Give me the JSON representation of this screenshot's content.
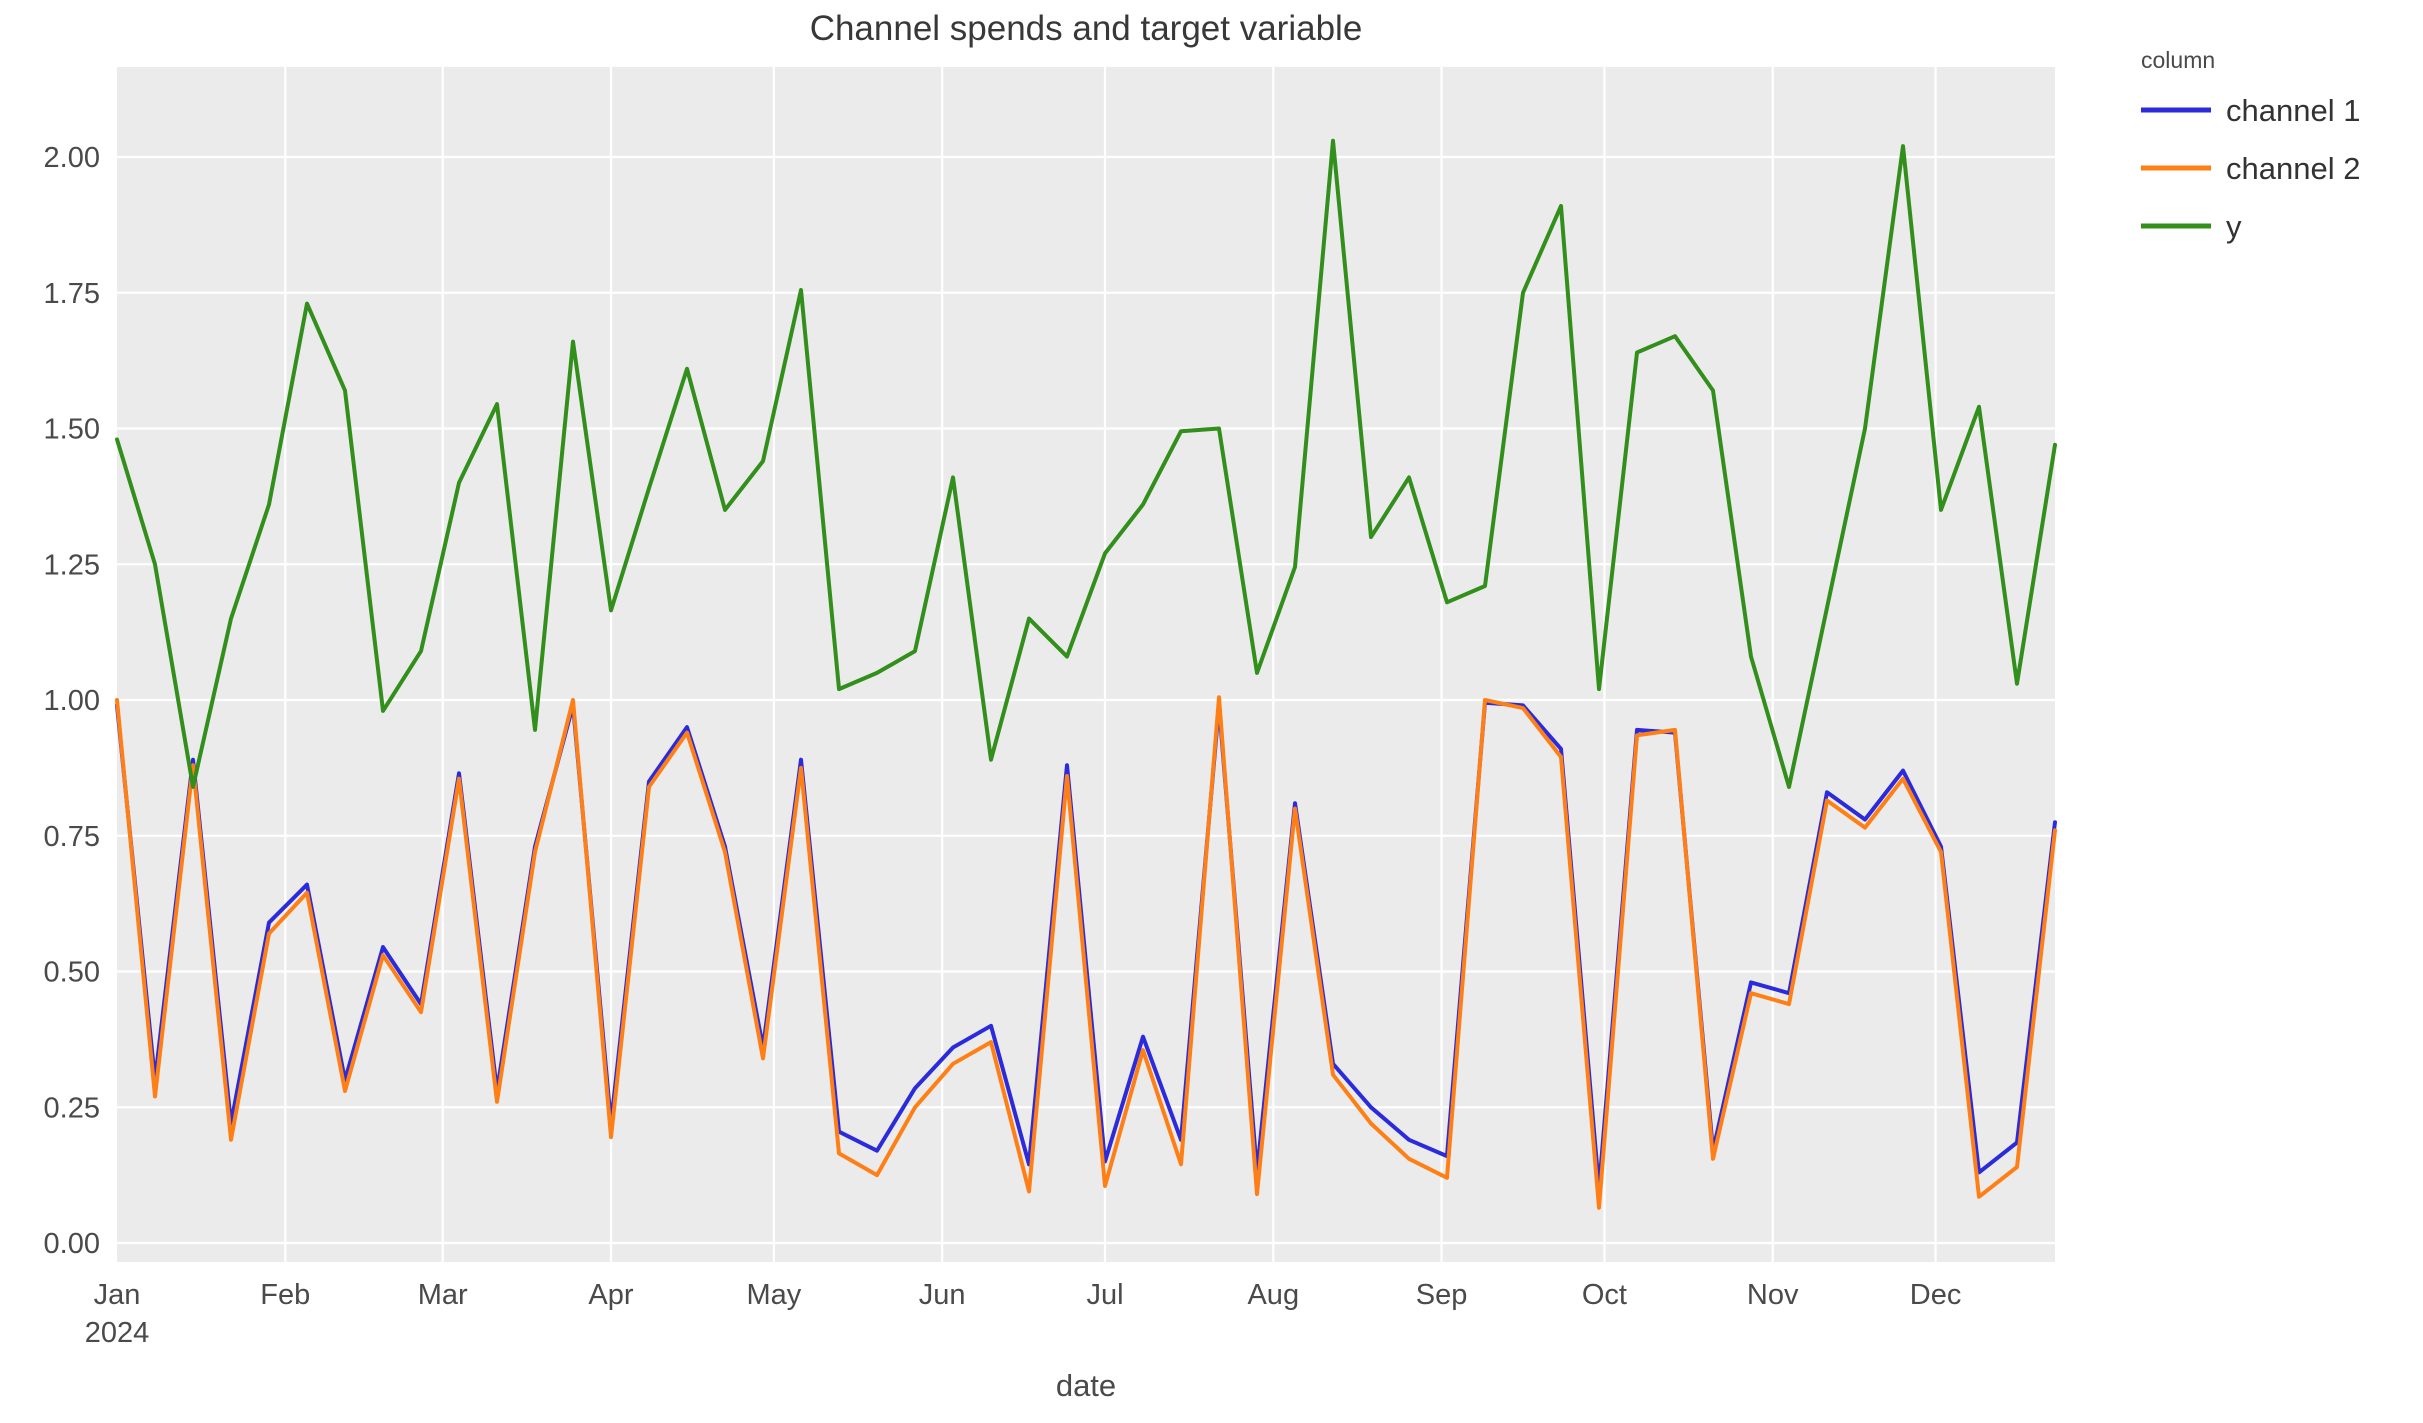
{
  "title": "Channel spends and target variable",
  "x_axis_label": "date",
  "legend": {
    "title": "column",
    "items": [
      {
        "label": "channel 1",
        "color": "#2b2bdb"
      },
      {
        "label": "channel 2",
        "color": "#ff7f17"
      },
      {
        "label": "y",
        "color": "#338f1b"
      }
    ]
  },
  "y_ticks": [
    "0.00",
    "0.25",
    "0.50",
    "0.75",
    "1.00",
    "1.25",
    "1.50",
    "1.75",
    "2.00"
  ],
  "x_ticks": [
    {
      "label": "Jan",
      "sublabel": "2024",
      "day": 0
    },
    {
      "label": "Feb",
      "day": 31
    },
    {
      "label": "Mar",
      "day": 60
    },
    {
      "label": "Apr",
      "day": 91
    },
    {
      "label": "May",
      "day": 121
    },
    {
      "label": "Jun",
      "day": 152
    },
    {
      "label": "Jul",
      "day": 182
    },
    {
      "label": "Aug",
      "day": 213
    },
    {
      "label": "Sep",
      "day": 244
    },
    {
      "label": "Oct",
      "day": 274
    },
    {
      "label": "Nov",
      "day": 305
    },
    {
      "label": "Dec",
      "day": 335
    }
  ],
  "chart_data": {
    "type": "line",
    "title": "Channel spends and target variable",
    "xlabel": "date",
    "ylabel": "",
    "legend_position": "top-right-outside",
    "grid": true,
    "background": "#ebebeb",
    "ylim": [
      -0.035,
      2.166
    ],
    "y_tick_values": [
      0,
      0.25,
      0.5,
      0.75,
      1.0,
      1.25,
      1.5,
      1.75,
      2.0
    ],
    "x_start_date": "2024-01-01",
    "x_end_date": "2024-12-23",
    "x_frequency": "weekly",
    "x": [
      "2024-01-01",
      "2024-01-08",
      "2024-01-15",
      "2024-01-22",
      "2024-01-29",
      "2024-02-05",
      "2024-02-12",
      "2024-02-19",
      "2024-02-26",
      "2024-03-04",
      "2024-03-11",
      "2024-03-18",
      "2024-03-25",
      "2024-04-01",
      "2024-04-08",
      "2024-04-15",
      "2024-04-22",
      "2024-04-29",
      "2024-05-06",
      "2024-05-13",
      "2024-05-20",
      "2024-05-27",
      "2024-06-03",
      "2024-06-10",
      "2024-06-17",
      "2024-06-24",
      "2024-07-01",
      "2024-07-08",
      "2024-07-15",
      "2024-07-22",
      "2024-07-29",
      "2024-08-05",
      "2024-08-12",
      "2024-08-19",
      "2024-08-26",
      "2024-09-02",
      "2024-09-09",
      "2024-09-16",
      "2024-09-23",
      "2024-09-30",
      "2024-10-07",
      "2024-10-14",
      "2024-10-21",
      "2024-10-28",
      "2024-11-04",
      "2024-11-11",
      "2024-11-18",
      "2024-11-25",
      "2024-12-02",
      "2024-12-09",
      "2024-12-16",
      "2024-12-23"
    ],
    "series": [
      {
        "name": "channel 1",
        "color": "#2b2bdb",
        "values": [
          0.99,
          0.3,
          0.89,
          0.22,
          0.59,
          0.66,
          0.3,
          0.545,
          0.44,
          0.865,
          0.28,
          0.73,
          0.99,
          0.22,
          0.85,
          0.95,
          0.73,
          0.36,
          0.89,
          0.205,
          0.17,
          0.285,
          0.36,
          0.4,
          0.145,
          0.88,
          0.15,
          0.38,
          0.19,
          0.99,
          0.13,
          0.81,
          0.33,
          0.25,
          0.19,
          0.16,
          0.995,
          0.99,
          0.91,
          0.1,
          0.945,
          0.94,
          0.17,
          0.48,
          0.46,
          0.83,
          0.78,
          0.87,
          0.73,
          0.13,
          0.185,
          0.775
        ]
      },
      {
        "name": "channel 2",
        "color": "#ff7f17",
        "values": [
          1.0,
          0.27,
          0.88,
          0.19,
          0.57,
          0.645,
          0.28,
          0.53,
          0.425,
          0.855,
          0.26,
          0.72,
          1.0,
          0.195,
          0.84,
          0.94,
          0.72,
          0.34,
          0.875,
          0.165,
          0.125,
          0.25,
          0.33,
          0.37,
          0.095,
          0.86,
          0.105,
          0.355,
          0.145,
          1.005,
          0.09,
          0.8,
          0.31,
          0.22,
          0.155,
          0.12,
          1.0,
          0.985,
          0.895,
          0.065,
          0.935,
          0.945,
          0.155,
          0.46,
          0.44,
          0.815,
          0.765,
          0.855,
          0.72,
          0.085,
          0.14,
          0.76
        ]
      },
      {
        "name": "y",
        "color": "#338f1b",
        "values": [
          1.48,
          1.25,
          0.84,
          1.15,
          1.36,
          1.73,
          1.57,
          0.98,
          1.09,
          1.4,
          1.545,
          0.945,
          1.66,
          1.165,
          1.39,
          1.61,
          1.35,
          1.44,
          1.755,
          1.02,
          1.05,
          1.09,
          1.41,
          0.89,
          1.15,
          1.08,
          1.27,
          1.36,
          1.495,
          1.5,
          1.05,
          1.245,
          2.03,
          1.3,
          1.41,
          1.18,
          1.21,
          1.75,
          1.91,
          1.02,
          1.64,
          1.67,
          1.57,
          1.08,
          0.84,
          1.17,
          1.5,
          2.02,
          1.35,
          1.54,
          1.03,
          1.47
        ]
      }
    ]
  }
}
